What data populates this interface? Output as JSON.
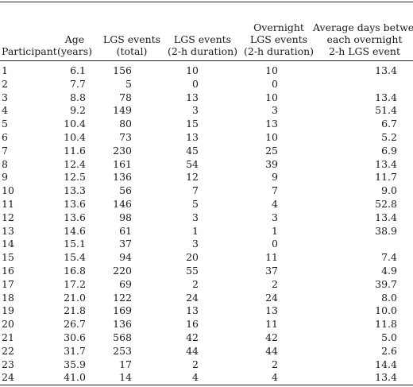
{
  "columns": [
    {
      "key": "participant",
      "lines": [
        "Participant"
      ]
    },
    {
      "key": "age",
      "lines": [
        "Age",
        "(years)"
      ]
    },
    {
      "key": "total",
      "lines": [
        "LGS events",
        "(total)"
      ]
    },
    {
      "key": "two_h",
      "lines": [
        "LGS events",
        "(2-h duration)"
      ]
    },
    {
      "key": "overnight",
      "lines": [
        "Overnight",
        "LGS events",
        "(2-h duration)"
      ]
    },
    {
      "key": "avg_days",
      "lines": [
        "Average days between",
        "each overnight",
        "2-h LGS event"
      ]
    }
  ],
  "rows": [
    [
      "1",
      "6.1",
      "156",
      "10",
      "10",
      "13.4"
    ],
    [
      "2",
      "7.7",
      "5",
      "0",
      "0",
      ""
    ],
    [
      "3",
      "8.8",
      "78",
      "13",
      "10",
      "13.4"
    ],
    [
      "4",
      "9.2",
      "149",
      "3",
      "3",
      "51.4"
    ],
    [
      "5",
      "10.4",
      "80",
      "15",
      "13",
      "6.7"
    ],
    [
      "6",
      "10.4",
      "73",
      "13",
      "10",
      "5.2"
    ],
    [
      "7",
      "11.6",
      "230",
      "45",
      "25",
      "6.9"
    ],
    [
      "8",
      "12.4",
      "161",
      "54",
      "39",
      "13.4"
    ],
    [
      "9",
      "12.5",
      "136",
      "12",
      "9",
      "11.7"
    ],
    [
      "10",
      "13.3",
      "56",
      "7",
      "7",
      "9.0"
    ],
    [
      "11",
      "13.6",
      "146",
      "5",
      "4",
      "52.8"
    ],
    [
      "12",
      "13.6",
      "98",
      "3",
      "3",
      "13.4"
    ],
    [
      "13",
      "14.6",
      "61",
      "1",
      "1",
      "38.9"
    ],
    [
      "14",
      "15.1",
      "37",
      "3",
      "0",
      ""
    ],
    [
      "15",
      "15.4",
      "94",
      "20",
      "11",
      "7.4"
    ],
    [
      "16",
      "16.8",
      "220",
      "55",
      "37",
      "4.9"
    ],
    [
      "17",
      "17.2",
      "69",
      "2",
      "2",
      "39.7"
    ],
    [
      "18",
      "21.0",
      "122",
      "24",
      "24",
      "8.0"
    ],
    [
      "19",
      "21.8",
      "169",
      "13",
      "13",
      "10.0"
    ],
    [
      "20",
      "26.7",
      "136",
      "16",
      "11",
      "11.8"
    ],
    [
      "21",
      "30.6",
      "568",
      "42",
      "42",
      "5.0"
    ],
    [
      "22",
      "31.7",
      "253",
      "44",
      "44",
      "2.6"
    ],
    [
      "23",
      "35.9",
      "17",
      "2",
      "2",
      "14.4"
    ],
    [
      "24",
      "41.0",
      "14",
      "4",
      "4",
      "13.4"
    ]
  ]
}
